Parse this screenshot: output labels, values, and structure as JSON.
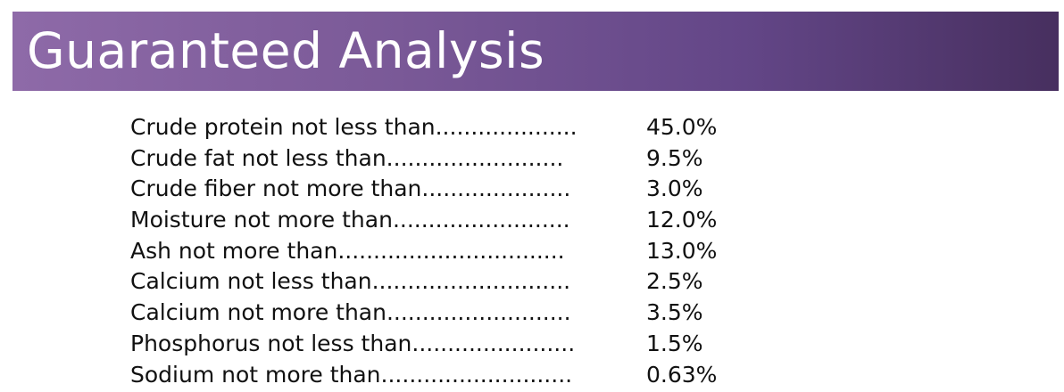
{
  "header": {
    "title": "Guaranteed Analysis"
  },
  "analysis": {
    "rows": [
      {
        "label": "Crude protein not less than....................",
        "value": "45.0%"
      },
      {
        "label": "Crude fat not less than.........................",
        "value": "9.5%"
      },
      {
        "label": "Crude fiber not more than.....................",
        "value": "3.0%"
      },
      {
        "label": "Moisture not more than.........................",
        "value": "12.0%"
      },
      {
        "label": "Ash not more than................................",
        "value": "13.0%"
      },
      {
        "label": "Calcium not less than............................",
        "value": "2.5%"
      },
      {
        "label": "Calcium not more than..........................",
        "value": "3.5%"
      },
      {
        "label": "Phosphorus not less than.......................",
        "value": "1.5%"
      },
      {
        "label": "Sodium not more than...........................",
        "value": "0.63%"
      }
    ]
  },
  "colors": {
    "banner_start": "#8e6aa8",
    "banner_end": "#472f5f",
    "title_text": "#ffffff",
    "body_text": "#111111"
  }
}
